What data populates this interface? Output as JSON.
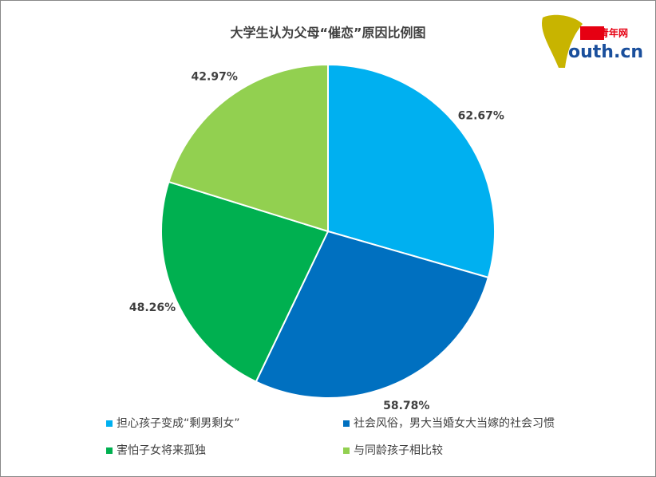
{
  "chart_data": {
    "type": "pie",
    "title": "大学生认为父母“催恋”原因比例图",
    "categories": [
      "担心孩子变成“剩男剩女”",
      "社会风俗，男大当婚女大当嫁的社会习惯",
      "害怕子女将来孤独",
      "与同龄孩子相比较"
    ],
    "values": [
      62.67,
      58.78,
      48.26,
      42.97
    ],
    "value_labels": [
      "62.67%",
      "58.78%",
      "48.26%",
      "42.97%"
    ],
    "colors": [
      "#00b0f0",
      "#0070c0",
      "#00b050",
      "#92d050"
    ]
  },
  "logo": {
    "brand": "中國青年网",
    "site": "outh.cn"
  }
}
